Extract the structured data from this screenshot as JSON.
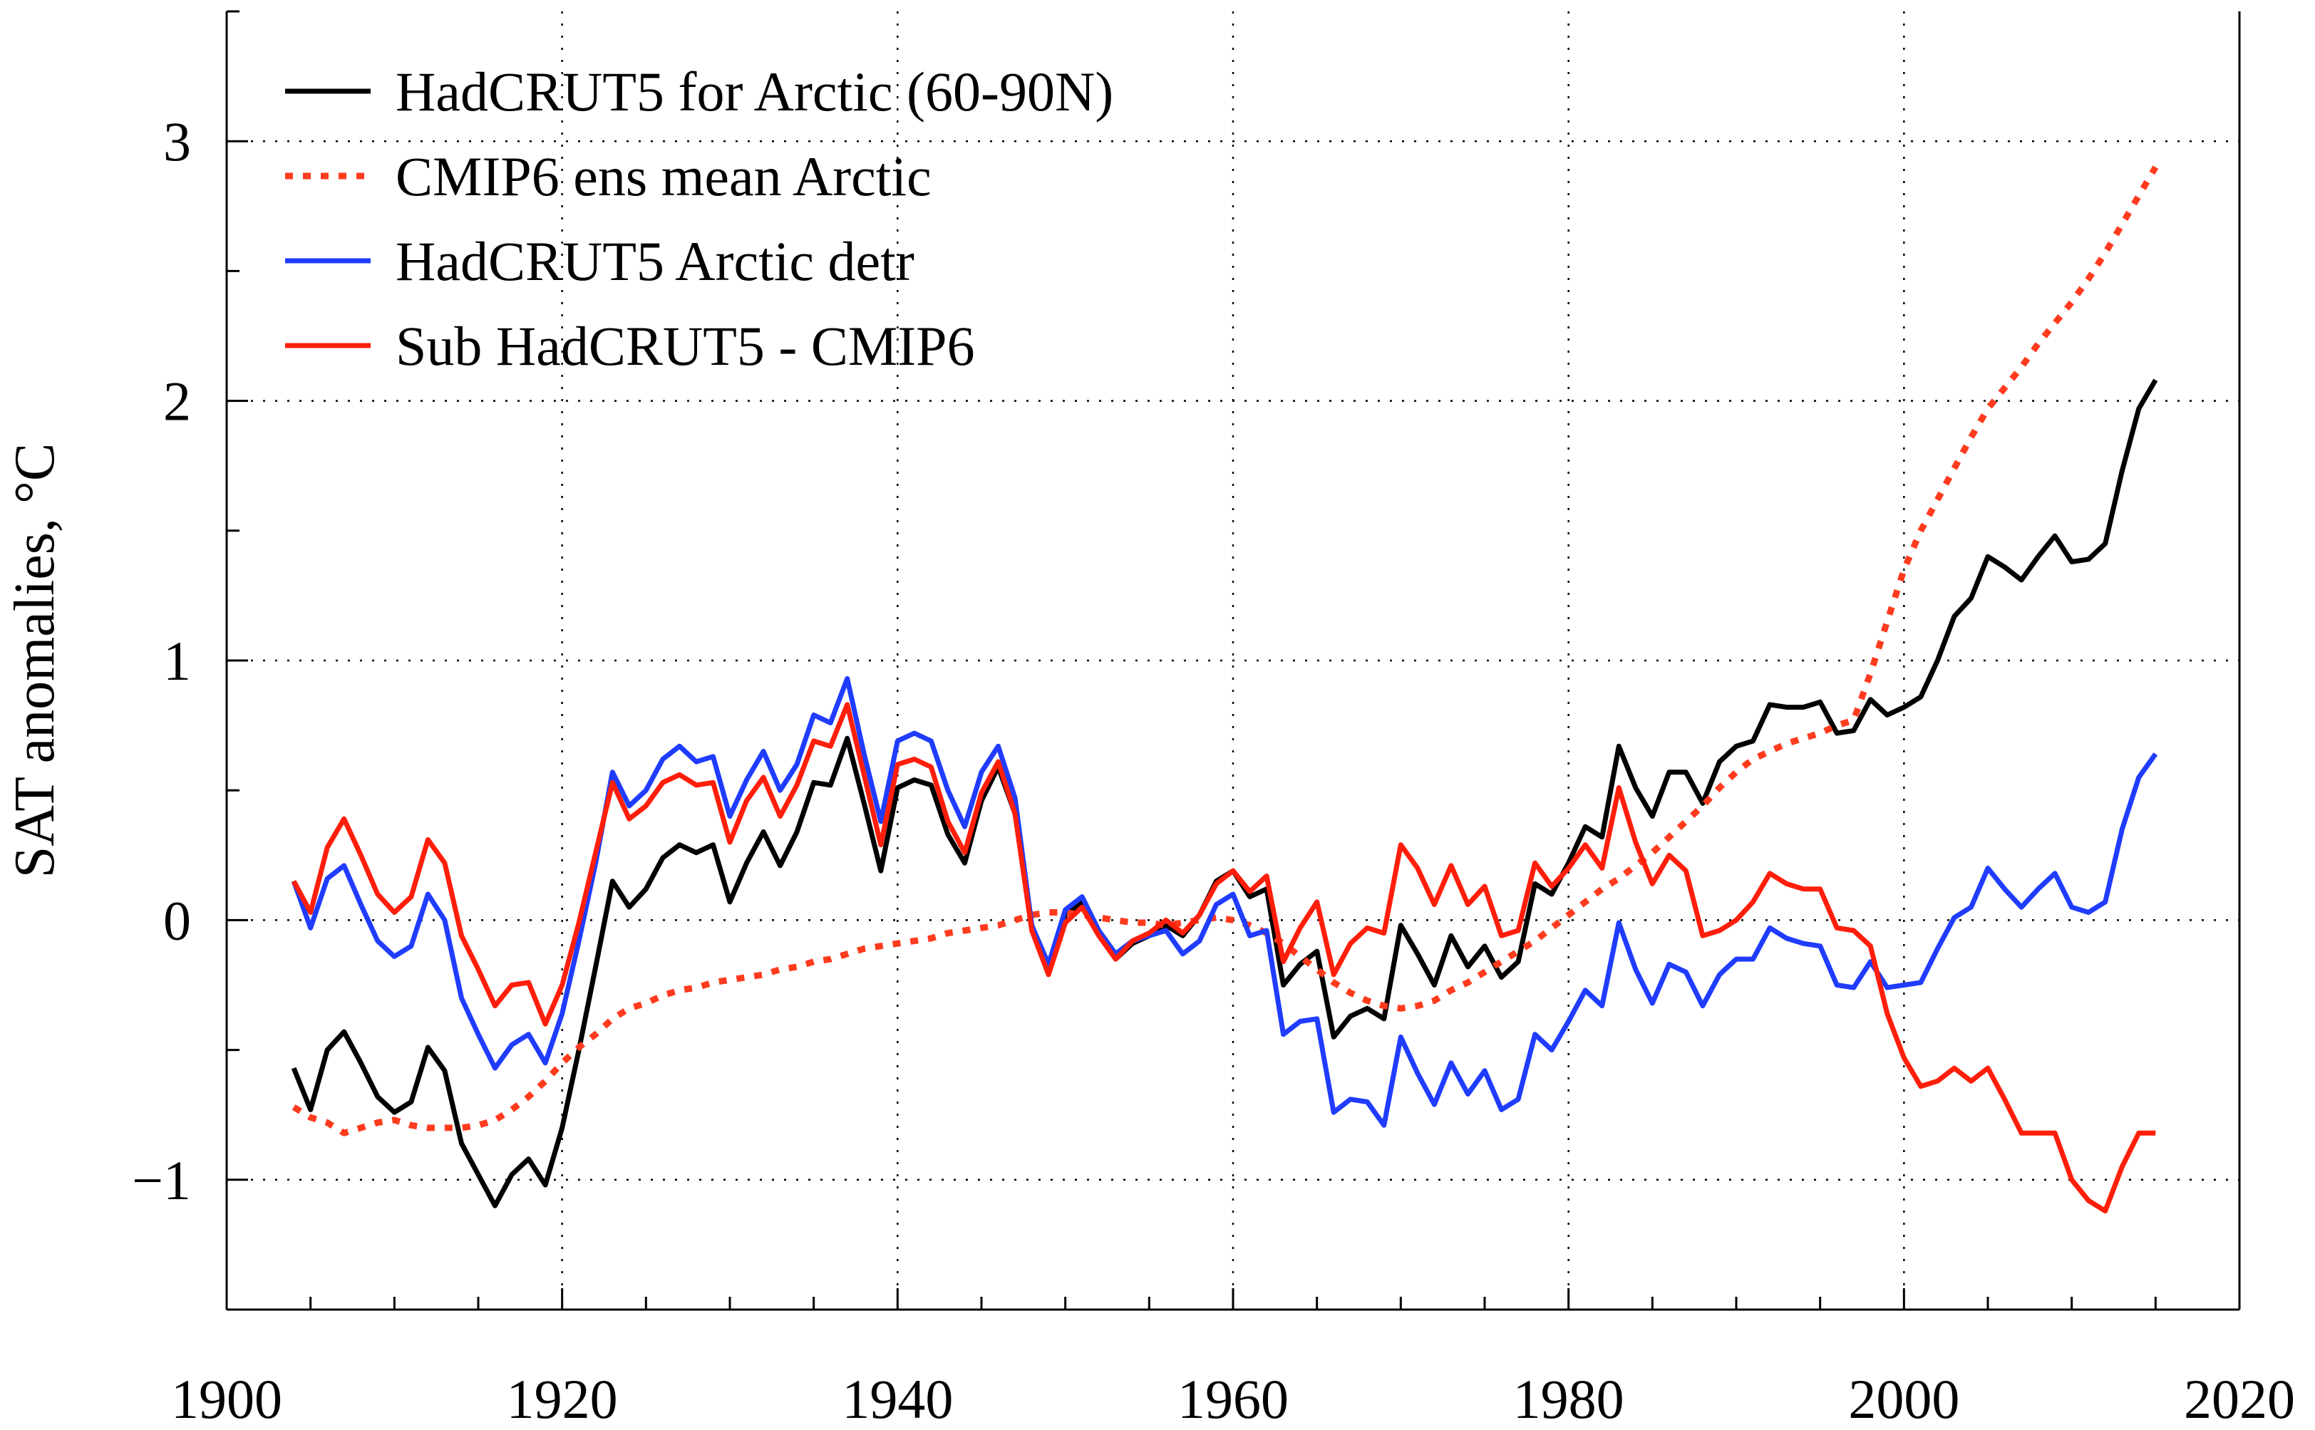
{
  "chart_data": {
    "type": "line",
    "title": "",
    "xlabel": "",
    "ylabel": "SAT anomalies, °C",
    "xlim": [
      1900,
      2020
    ],
    "ylim": [
      -1.5,
      3.5
    ],
    "xticks": [
      1900,
      1920,
      1940,
      1960,
      1980,
      2000,
      2020
    ],
    "yticks": [
      -1,
      0,
      1,
      2,
      3
    ],
    "ytick_labels": [
      "−1",
      "0",
      "1",
      "2",
      "3"
    ],
    "grid": "dotted",
    "legend_position": "top-left",
    "x": [
      1904,
      1905,
      1906,
      1907,
      1908,
      1909,
      1910,
      1911,
      1912,
      1913,
      1914,
      1915,
      1916,
      1917,
      1918,
      1919,
      1920,
      1921,
      1922,
      1923,
      1924,
      1925,
      1926,
      1927,
      1928,
      1929,
      1930,
      1931,
      1932,
      1933,
      1934,
      1935,
      1936,
      1937,
      1938,
      1939,
      1940,
      1941,
      1942,
      1943,
      1944,
      1945,
      1946,
      1947,
      1948,
      1949,
      1950,
      1951,
      1952,
      1953,
      1954,
      1955,
      1956,
      1957,
      1958,
      1959,
      1960,
      1961,
      1962,
      1963,
      1964,
      1965,
      1966,
      1967,
      1968,
      1969,
      1970,
      1971,
      1972,
      1973,
      1974,
      1975,
      1976,
      1977,
      1978,
      1979,
      1980,
      1981,
      1982,
      1983,
      1984,
      1985,
      1986,
      1987,
      1988,
      1989,
      1990,
      1991,
      1992,
      1993,
      1994,
      1995,
      1996,
      1997,
      1998,
      1999,
      2000,
      2001,
      2002,
      2003,
      2004,
      2005,
      2006,
      2007,
      2008,
      2009,
      2010,
      2011,
      2012,
      2013,
      2014,
      2015
    ],
    "series": [
      {
        "name": "HadCRUT5 for Arctic (60-90N)",
        "color": "#000000",
        "style": "solid",
        "values": [
          -0.57,
          -0.73,
          -0.5,
          -0.43,
          -0.55,
          -0.68,
          -0.74,
          -0.7,
          -0.49,
          -0.58,
          -0.86,
          -0.98,
          -1.1,
          -0.98,
          -0.92,
          -1.02,
          -0.8,
          -0.5,
          -0.18,
          0.15,
          0.05,
          0.12,
          0.24,
          0.29,
          0.26,
          0.29,
          0.07,
          0.22,
          0.34,
          0.21,
          0.34,
          0.53,
          0.52,
          0.7,
          0.45,
          0.19,
          0.51,
          0.54,
          0.52,
          0.33,
          0.22,
          0.46,
          0.59,
          0.41,
          -0.02,
          -0.18,
          0.02,
          0.07,
          -0.05,
          -0.15,
          -0.09,
          -0.06,
          -0.02,
          -0.06,
          0.02,
          0.15,
          0.19,
          0.09,
          0.12,
          -0.25,
          -0.17,
          -0.12,
          -0.45,
          -0.37,
          -0.34,
          -0.38,
          -0.02,
          -0.13,
          -0.25,
          -0.06,
          -0.18,
          -0.1,
          -0.22,
          -0.16,
          0.14,
          0.1,
          0.22,
          0.36,
          0.32,
          0.67,
          0.51,
          0.4,
          0.57,
          0.57,
          0.45,
          0.61,
          0.67,
          0.69,
          0.83,
          0.82,
          0.82,
          0.84,
          0.72,
          0.73,
          0.85,
          0.79,
          0.82,
          0.86,
          1.0,
          1.17,
          1.24,
          1.4,
          1.36,
          1.31,
          1.4,
          1.48,
          1.38,
          1.39,
          1.45,
          1.73,
          1.97,
          2.08
        ]
      },
      {
        "name": "CMIP6 ens mean Arctic",
        "color": "#ff3b1e",
        "style": "dotted",
        "values": [
          -0.72,
          -0.76,
          -0.78,
          -0.82,
          -0.8,
          -0.78,
          -0.77,
          -0.79,
          -0.8,
          -0.8,
          -0.8,
          -0.79,
          -0.77,
          -0.73,
          -0.68,
          -0.62,
          -0.55,
          -0.49,
          -0.44,
          -0.38,
          -0.34,
          -0.32,
          -0.29,
          -0.27,
          -0.26,
          -0.24,
          -0.23,
          -0.22,
          -0.21,
          -0.19,
          -0.18,
          -0.16,
          -0.15,
          -0.13,
          -0.11,
          -0.1,
          -0.09,
          -0.08,
          -0.07,
          -0.05,
          -0.04,
          -0.03,
          -0.02,
          0.0,
          0.02,
          0.03,
          0.03,
          0.02,
          0.01,
          0.0,
          -0.01,
          -0.01,
          -0.02,
          -0.01,
          0.0,
          0.01,
          0.0,
          -0.02,
          -0.05,
          -0.09,
          -0.14,
          -0.19,
          -0.24,
          -0.28,
          -0.31,
          -0.33,
          -0.34,
          -0.33,
          -0.31,
          -0.27,
          -0.24,
          -0.2,
          -0.16,
          -0.12,
          -0.08,
          -0.03,
          0.02,
          0.07,
          0.12,
          0.16,
          0.21,
          0.26,
          0.32,
          0.38,
          0.44,
          0.51,
          0.57,
          0.62,
          0.65,
          0.68,
          0.7,
          0.72,
          0.75,
          0.77,
          0.95,
          1.15,
          1.35,
          1.5,
          1.62,
          1.74,
          1.86,
          1.97,
          2.05,
          2.13,
          2.22,
          2.3,
          2.38,
          2.47,
          2.57,
          2.68,
          2.79,
          2.9
        ]
      },
      {
        "name": "HadCRUT5 Arctic detr",
        "color": "#1f3cff",
        "style": "solid",
        "values": [
          0.15,
          -0.03,
          0.16,
          0.21,
          0.06,
          -0.08,
          -0.14,
          -0.1,
          0.1,
          0.0,
          -0.3,
          -0.44,
          -0.57,
          -0.48,
          -0.44,
          -0.55,
          -0.36,
          -0.08,
          0.22,
          0.57,
          0.44,
          0.5,
          0.62,
          0.67,
          0.61,
          0.63,
          0.4,
          0.54,
          0.65,
          0.5,
          0.6,
          0.79,
          0.76,
          0.93,
          0.64,
          0.38,
          0.69,
          0.72,
          0.69,
          0.5,
          0.36,
          0.57,
          0.67,
          0.47,
          -0.02,
          -0.17,
          0.04,
          0.09,
          -0.04,
          -0.13,
          -0.08,
          -0.06,
          -0.04,
          -0.13,
          -0.08,
          0.06,
          0.1,
          -0.06,
          -0.04,
          -0.44,
          -0.39,
          -0.38,
          -0.74,
          -0.69,
          -0.7,
          -0.79,
          -0.45,
          -0.59,
          -0.71,
          -0.55,
          -0.67,
          -0.58,
          -0.73,
          -0.69,
          -0.44,
          -0.5,
          -0.39,
          -0.27,
          -0.33,
          -0.01,
          -0.19,
          -0.32,
          -0.17,
          -0.2,
          -0.33,
          -0.21,
          -0.15,
          -0.15,
          -0.03,
          -0.07,
          -0.09,
          -0.1,
          -0.25,
          -0.26,
          -0.16,
          -0.26,
          -0.25,
          -0.24,
          -0.11,
          0.01,
          0.05,
          0.2,
          0.12,
          0.05,
          0.12,
          0.18,
          0.05,
          0.03,
          0.07,
          0.35,
          0.55,
          0.64
        ]
      },
      {
        "name": "Sub HadCRUT5 - CMIP6",
        "color": "#ff1e0a",
        "style": "solid",
        "values": [
          0.15,
          0.03,
          0.28,
          0.39,
          0.25,
          0.1,
          0.03,
          0.09,
          0.31,
          0.22,
          -0.06,
          -0.19,
          -0.33,
          -0.25,
          -0.24,
          -0.4,
          -0.25,
          -0.01,
          0.26,
          0.53,
          0.39,
          0.44,
          0.53,
          0.56,
          0.52,
          0.53,
          0.3,
          0.46,
          0.55,
          0.4,
          0.52,
          0.69,
          0.67,
          0.83,
          0.56,
          0.29,
          0.6,
          0.62,
          0.59,
          0.38,
          0.26,
          0.49,
          0.61,
          0.41,
          -0.04,
          -0.21,
          -0.01,
          0.05,
          -0.06,
          -0.15,
          -0.08,
          -0.05,
          0.0,
          -0.05,
          0.02,
          0.14,
          0.19,
          0.11,
          0.17,
          -0.16,
          -0.03,
          0.07,
          -0.21,
          -0.09,
          -0.03,
          -0.05,
          0.29,
          0.2,
          0.06,
          0.21,
          0.06,
          0.13,
          -0.06,
          -0.04,
          0.22,
          0.13,
          0.2,
          0.29,
          0.2,
          0.51,
          0.3,
          0.14,
          0.25,
          0.19,
          -0.06,
          -0.04,
          0.0,
          0.07,
          0.18,
          0.14,
          0.12,
          0.12,
          -0.03,
          -0.04,
          -0.1,
          -0.36,
          -0.53,
          -0.64,
          -0.62,
          -0.57,
          -0.62,
          -0.57,
          -0.69,
          -0.82,
          -0.82,
          -0.82,
          -1.0,
          -1.08,
          -1.12,
          -0.95,
          -0.82,
          -0.82
        ]
      }
    ]
  }
}
